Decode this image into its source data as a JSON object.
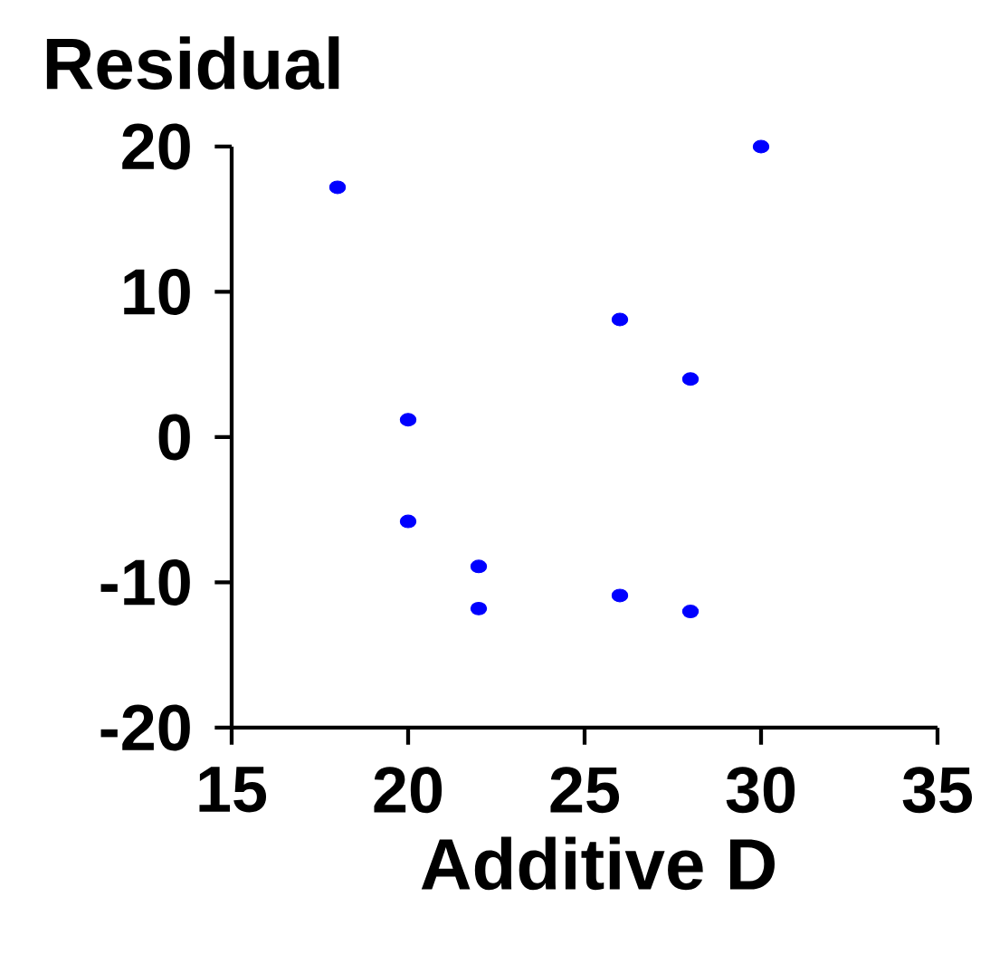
{
  "chart_data": {
    "type": "scatter",
    "xlabel": "Additive D",
    "ylabel": "Residual",
    "series": [
      {
        "color": "#0000ff",
        "x": [
          18,
          20,
          20,
          22,
          22,
          26,
          26,
          28,
          28,
          30
        ],
        "values": [
          17.2,
          1.2,
          -5.8,
          -8.9,
          -11.8,
          8.1,
          -10.9,
          4,
          -12,
          20
        ]
      }
    ],
    "xlim": [
      15,
      35
    ],
    "ylim": [
      -20,
      20
    ],
    "xticks": [
      15,
      20,
      25,
      30,
      35
    ],
    "yticks": [
      -20,
      -10,
      0,
      10,
      20
    ]
  }
}
